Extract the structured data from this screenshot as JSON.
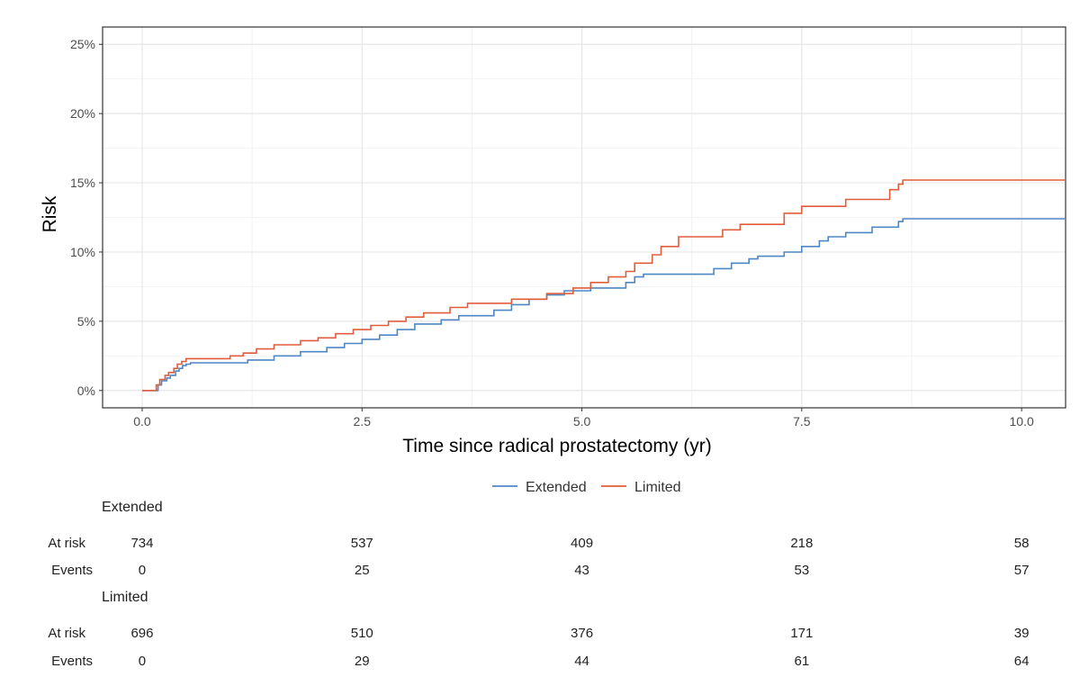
{
  "chart_data": {
    "type": "line",
    "step": true,
    "xlabel": "Time since radical prostatectomy (yr)",
    "ylabel": "Risk",
    "xlim": [
      -0.45,
      10.5
    ],
    "ylim": [
      -0.0125,
      0.2625
    ],
    "x_ticks": [
      0,
      2.5,
      5,
      7.5,
      10
    ],
    "x_tick_labels": [
      "0.0",
      "2.5",
      "5.0",
      "7.5",
      "10.0"
    ],
    "y_ticks": [
      0,
      0.05,
      0.1,
      0.15,
      0.2,
      0.25
    ],
    "y_tick_labels": [
      "0%",
      "5%",
      "10%",
      "15%",
      "20%",
      "25%"
    ],
    "grid": true,
    "legend_position": "bottom",
    "series": [
      {
        "name": "Extended",
        "color": "#4f87c4",
        "x": [
          0,
          0.18,
          0.22,
          0.28,
          0.32,
          0.38,
          0.42,
          0.46,
          0.5,
          0.55,
          1.2,
          1.5,
          1.8,
          2.1,
          2.3,
          2.5,
          2.7,
          2.9,
          3.1,
          3.4,
          3.6,
          4.0,
          4.2,
          4.4,
          4.6,
          4.8,
          5.1,
          5.5,
          5.6,
          5.7,
          6.5,
          6.7,
          6.9,
          7.0,
          7.3,
          7.5,
          7.7,
          7.8,
          8.0,
          8.3,
          8.6,
          8.65,
          10.5
        ],
        "y": [
          0,
          0.004,
          0.007,
          0.009,
          0.011,
          0.014,
          0.016,
          0.018,
          0.019,
          0.02,
          0.022,
          0.025,
          0.028,
          0.031,
          0.034,
          0.037,
          0.04,
          0.044,
          0.048,
          0.051,
          0.054,
          0.058,
          0.062,
          0.066,
          0.069,
          0.072,
          0.074,
          0.078,
          0.082,
          0.084,
          0.088,
          0.092,
          0.095,
          0.097,
          0.1,
          0.104,
          0.108,
          0.111,
          0.114,
          0.118,
          0.122,
          0.124,
          0.124
        ]
      },
      {
        "name": "Limited",
        "color": "#e05d3b",
        "x": [
          0,
          0.16,
          0.2,
          0.26,
          0.3,
          0.36,
          0.4,
          0.45,
          0.5,
          0.55,
          1.0,
          1.15,
          1.3,
          1.5,
          1.8,
          2.0,
          2.2,
          2.4,
          2.6,
          2.8,
          3.0,
          3.2,
          3.5,
          3.7,
          4.2,
          4.6,
          4.9,
          5.1,
          5.3,
          5.5,
          5.6,
          5.8,
          5.9,
          6.1,
          6.6,
          6.8,
          7.3,
          7.5,
          7.9,
          8.0,
          8.4,
          8.5,
          8.6,
          8.65,
          10.5
        ],
        "y": [
          0,
          0.004,
          0.008,
          0.011,
          0.013,
          0.016,
          0.019,
          0.021,
          0.023,
          0.023,
          0.025,
          0.027,
          0.03,
          0.033,
          0.036,
          0.038,
          0.041,
          0.044,
          0.047,
          0.05,
          0.053,
          0.056,
          0.06,
          0.063,
          0.066,
          0.07,
          0.074,
          0.078,
          0.082,
          0.086,
          0.092,
          0.098,
          0.104,
          0.111,
          0.116,
          0.12,
          0.128,
          0.133,
          0.133,
          0.138,
          0.138,
          0.145,
          0.149,
          0.152,
          0.152
        ]
      }
    ],
    "risk_table": {
      "times": [
        0,
        2.5,
        5,
        7.5,
        10
      ],
      "groups": [
        {
          "name": "Extended",
          "rows": [
            {
              "label": "At risk",
              "values": [
                "734",
                "537",
                "409",
                "218",
                "58"
              ]
            },
            {
              "label": "Events",
              "values": [
                "0",
                "25",
                "43",
                "53",
                "57"
              ]
            }
          ]
        },
        {
          "name": "Limited",
          "rows": [
            {
              "label": "At risk",
              "values": [
                "696",
                "510",
                "376",
                "171",
                "39"
              ]
            },
            {
              "label": "Events",
              "values": [
                "0",
                "29",
                "44",
                "61",
                "64"
              ]
            }
          ]
        }
      ]
    }
  }
}
